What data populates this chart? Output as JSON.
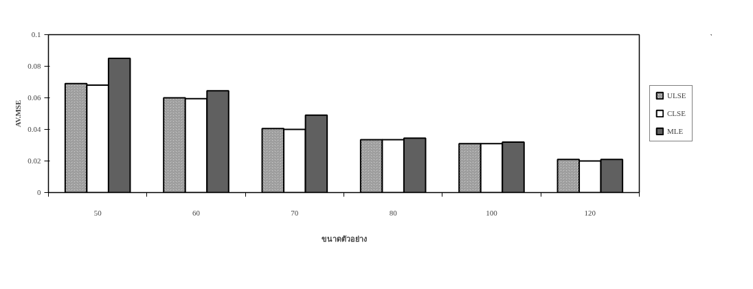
{
  "chart_data": {
    "type": "bar",
    "xlabel": "ขนาดตัวอย่าง",
    "ylabel": "AV.MSE",
    "categories": [
      "50",
      "60",
      "70",
      "80",
      "100",
      "120"
    ],
    "series": [
      {
        "name": "ULSE",
        "color": "#d0d0d0",
        "values": [
          0.069,
          0.06,
          0.0405,
          0.0335,
          0.031,
          0.021
        ]
      },
      {
        "name": "CLSE",
        "color": "#ffffff",
        "values": [
          0.068,
          0.0595,
          0.04,
          0.0335,
          0.031,
          0.02
        ]
      },
      {
        "name": "MLE",
        "color": "#606060",
        "values": [
          0.085,
          0.0645,
          0.049,
          0.0345,
          0.032,
          0.021
        ]
      }
    ],
    "ylim": [
      0,
      0.1
    ],
    "yticks": [
      0,
      0.02,
      0.04,
      0.06,
      0.08,
      0.1
    ],
    "grid": false,
    "legend": "right"
  }
}
